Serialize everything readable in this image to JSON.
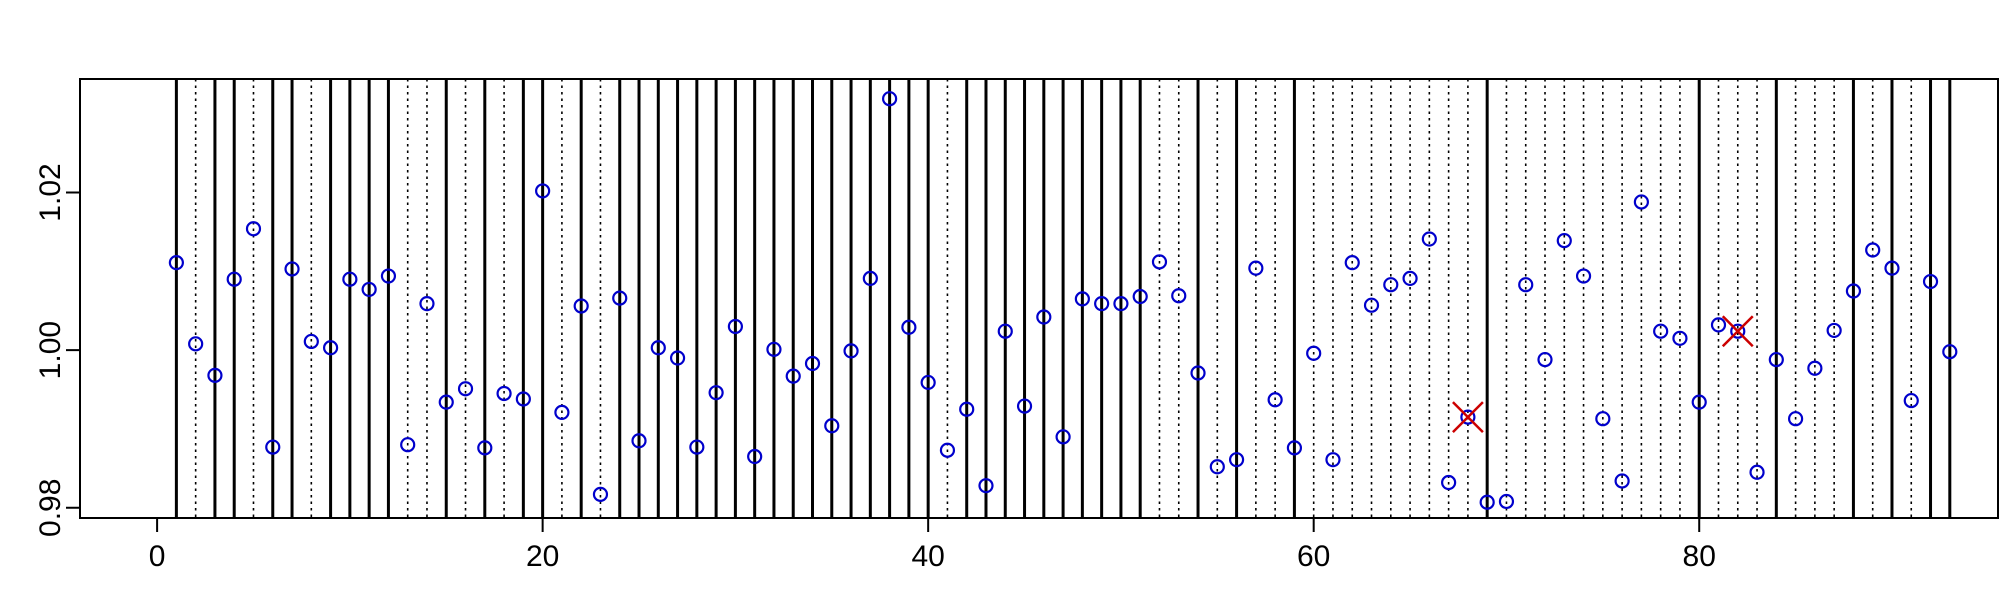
{
  "chart_data": {
    "type": "scatter",
    "title": "",
    "xlabel": "",
    "ylabel": "",
    "xlim": [
      -4,
      95.5
    ],
    "ylim": [
      0.9787,
      1.0344
    ],
    "x_ticks": [
      0,
      20,
      40,
      60,
      80
    ],
    "x_tick_labels": [
      "0",
      "20",
      "40",
      "60",
      "80"
    ],
    "y_ticks": [
      0.98,
      1.0,
      1.02
    ],
    "y_tick_labels": [
      "0.98",
      "1.00",
      "1.02"
    ],
    "grid": false,
    "legend": "none",
    "point_color": "#0000cc",
    "flag_color": "#cc0000",
    "line_color": "#000000",
    "points": {
      "x": [
        1,
        2,
        3,
        4,
        5,
        6,
        7,
        8,
        9,
        10,
        11,
        12,
        13,
        14,
        15,
        16,
        17,
        18,
        19,
        20,
        21,
        22,
        23,
        24,
        25,
        26,
        27,
        28,
        29,
        30,
        31,
        32,
        33,
        34,
        35,
        36,
        37,
        38,
        39,
        40,
        41,
        42,
        43,
        44,
        45,
        46,
        47,
        48,
        49,
        50,
        51,
        52,
        53,
        54,
        55,
        56,
        57,
        58,
        59,
        60,
        61,
        62,
        63,
        64,
        65,
        66,
        67,
        68,
        69,
        70,
        71,
        72,
        73,
        74,
        75,
        76,
        77,
        78,
        79,
        80,
        81,
        82,
        83,
        84,
        85,
        86,
        87,
        88,
        89,
        90,
        91,
        92,
        93
      ],
      "y": [
        1.0111,
        1.0008,
        0.9968,
        1.009,
        1.0154,
        0.9877,
        1.0103,
        1.0011,
        1.0003,
        1.009,
        1.0077,
        1.0094,
        0.988,
        1.0059,
        0.9934,
        0.9951,
        0.9876,
        0.9945,
        0.9938,
        1.0202,
        0.9921,
        1.0056,
        0.9817,
        1.0066,
        0.9885,
        1.0003,
        0.999,
        0.9877,
        0.9946,
        1.003,
        0.9865,
        1.0001,
        0.9967,
        0.9983,
        0.9904,
        0.9999,
        1.0091,
        1.0319,
        1.0029,
        0.9959,
        0.9873,
        0.9925,
        0.9828,
        1.0024,
        0.9929,
        1.0042,
        0.989,
        1.0065,
        1.0059,
        1.0059,
        1.0068,
        1.0112,
        1.0069,
        0.9971,
        0.9852,
        0.9861,
        1.0104,
        0.9937,
        0.9876,
        0.9996,
        0.9861,
        1.0111,
        1.0057,
        1.0083,
        1.0091,
        1.0141,
        0.9832,
        0.9915,
        0.9807,
        0.9808,
        1.0083,
        0.9988,
        1.0139,
        1.0094,
        0.9913,
        0.9834,
        1.0188,
        1.0024,
        1.0015,
        0.9934,
        1.0032,
        1.0024,
        0.9845,
        0.9988,
        0.9913,
        0.9977,
        1.0025,
        1.0075,
        1.0127,
        1.0104,
        0.9936,
        1.0087,
        0.9998
      ]
    },
    "flagged_points": {
      "x": [
        68,
        82
      ],
      "y": [
        0.9915,
        1.0024
      ]
    },
    "solid_lines_x": [
      1,
      3,
      4,
      6,
      7,
      9,
      10,
      11,
      12,
      15,
      17,
      19,
      20,
      22,
      24,
      25,
      26,
      27,
      28,
      29,
      30,
      31,
      32,
      33,
      34,
      35,
      36,
      37,
      38,
      39,
      40,
      42,
      43,
      44,
      45,
      46,
      47,
      48,
      49,
      50,
      51,
      54,
      56,
      59,
      69,
      80,
      84,
      88,
      90,
      92,
      93
    ],
    "dotted_lines_x": [
      2,
      5,
      8,
      13,
      14,
      16,
      18,
      21,
      23,
      41,
      52,
      53,
      55,
      57,
      58,
      60,
      61,
      62,
      63,
      64,
      65,
      66,
      67,
      68,
      70,
      71,
      72,
      73,
      74,
      75,
      76,
      77,
      78,
      79,
      81,
      82,
      83,
      85,
      86,
      87,
      89,
      91
    ]
  }
}
